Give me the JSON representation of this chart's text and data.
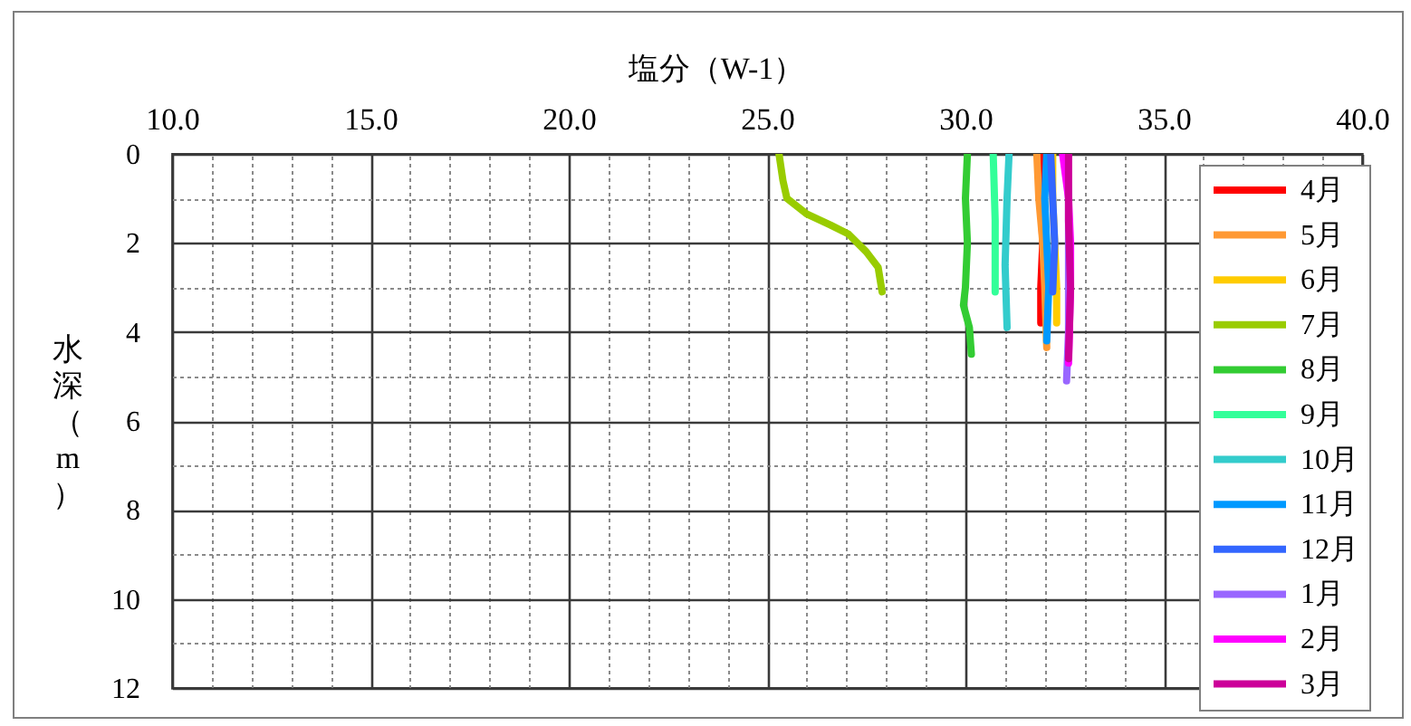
{
  "chart_data": {
    "type": "line",
    "xlabel": "塩分（W-1）",
    "ylabel": "水深（m）",
    "xlim": [
      10,
      40
    ],
    "ylim": [
      12,
      0
    ],
    "xticks": [
      {
        "value": 10,
        "label": "10.0"
      },
      {
        "value": 11,
        "label": null
      },
      {
        "value": 12,
        "label": null
      },
      {
        "value": 13,
        "label": null
      },
      {
        "value": 14,
        "label": null
      },
      {
        "value": 15,
        "label": "15.0"
      },
      {
        "value": 16,
        "label": null
      },
      {
        "value": 17,
        "label": null
      },
      {
        "value": 18,
        "label": null
      },
      {
        "value": 19,
        "label": null
      },
      {
        "value": 20,
        "label": "20.0"
      },
      {
        "value": 21,
        "label": null
      },
      {
        "value": 22,
        "label": null
      },
      {
        "value": 23,
        "label": null
      },
      {
        "value": 24,
        "label": null
      },
      {
        "value": 25,
        "label": "25.0"
      },
      {
        "value": 26,
        "label": null
      },
      {
        "value": 27,
        "label": null
      },
      {
        "value": 28,
        "label": null
      },
      {
        "value": 29,
        "label": null
      },
      {
        "value": 30,
        "label": "30.0"
      },
      {
        "value": 31,
        "label": null
      },
      {
        "value": 32,
        "label": null
      },
      {
        "value": 33,
        "label": null
      },
      {
        "value": 34,
        "label": null
      },
      {
        "value": 35,
        "label": "35.0"
      },
      {
        "value": 36,
        "label": null
      },
      {
        "value": 37,
        "label": null
      },
      {
        "value": 38,
        "label": null
      },
      {
        "value": 39,
        "label": null
      },
      {
        "value": 40,
        "label": "40.0"
      }
    ],
    "yticks": [
      0,
      {
        "value": 1,
        "label": null
      },
      2,
      {
        "value": 3,
        "label": null
      },
      4,
      {
        "value": 5,
        "label": null
      },
      6,
      {
        "value": 7,
        "label": null
      },
      8,
      {
        "value": 9,
        "label": null
      },
      10,
      {
        "value": 11,
        "label": null
      },
      12
    ],
    "grid": true,
    "legend": "right",
    "series": [
      {
        "name": "4月",
        "color": "#ff0000",
        "x": [
          31.9,
          31.9,
          31.95,
          31.9,
          31.9
        ],
        "values": [
          0,
          1,
          2,
          3,
          3.8
        ]
      },
      {
        "name": "5月",
        "color": "#ff9933",
        "x": [
          31.8,
          31.85,
          31.95,
          32.0,
          32.05
        ],
        "values": [
          0,
          1,
          2,
          3,
          4.35
        ]
      },
      {
        "name": "6月",
        "color": "#ffcc00",
        "x": [
          32.2,
          32.2,
          32.25,
          32.3,
          32.3
        ],
        "values": [
          0,
          1,
          2,
          3,
          3.8
        ]
      },
      {
        "name": "7月",
        "color": "#99cc00",
        "x": [
          25.3,
          25.4,
          25.5,
          26.0,
          26.6,
          27.05,
          27.5,
          27.8,
          27.9
        ],
        "values": [
          0,
          0.6,
          1.0,
          1.35,
          1.6,
          1.8,
          2.2,
          2.55,
          3.1
        ]
      },
      {
        "name": "8月",
        "color": "#33cc33",
        "x": [
          30.05,
          30.0,
          30.05,
          30.0,
          29.95,
          30.1,
          30.15
        ],
        "values": [
          0,
          1,
          2,
          3,
          3.4,
          3.9,
          4.5
        ]
      },
      {
        "name": "9月",
        "color": "#33ff99",
        "x": [
          30.7,
          30.75,
          30.75
        ],
        "values": [
          0,
          1.5,
          3.1
        ]
      },
      {
        "name": "10月",
        "color": "#33cccc",
        "x": [
          31.1,
          31.05,
          31.0,
          31.05
        ],
        "values": [
          0,
          1,
          2.5,
          3.9
        ]
      },
      {
        "name": "11月",
        "color": "#0099ff",
        "x": [
          32.05,
          32.0,
          32.05,
          32.1,
          32.05
        ],
        "values": [
          0,
          1,
          2,
          3,
          4.2
        ]
      },
      {
        "name": "12月",
        "color": "#3366ff",
        "x": [
          32.15,
          32.2,
          32.25,
          32.2
        ],
        "values": [
          0,
          1,
          2,
          3.1
        ]
      },
      {
        "name": "1月",
        "color": "#9966ff",
        "x": [
          32.55,
          32.6,
          32.6,
          32.6,
          32.55
        ],
        "values": [
          0,
          1,
          2,
          4,
          5.1
        ]
      },
      {
        "name": "2月",
        "color": "#ff00ff",
        "x": [
          32.45,
          32.6,
          32.65,
          32.65,
          32.6
        ],
        "values": [
          0,
          1,
          2,
          3,
          4.7
        ]
      },
      {
        "name": "3月",
        "color": "#cc0099",
        "x": [
          32.6,
          32.6,
          32.65,
          32.6
        ],
        "values": [
          0,
          1.5,
          3,
          4.6
        ]
      }
    ]
  }
}
